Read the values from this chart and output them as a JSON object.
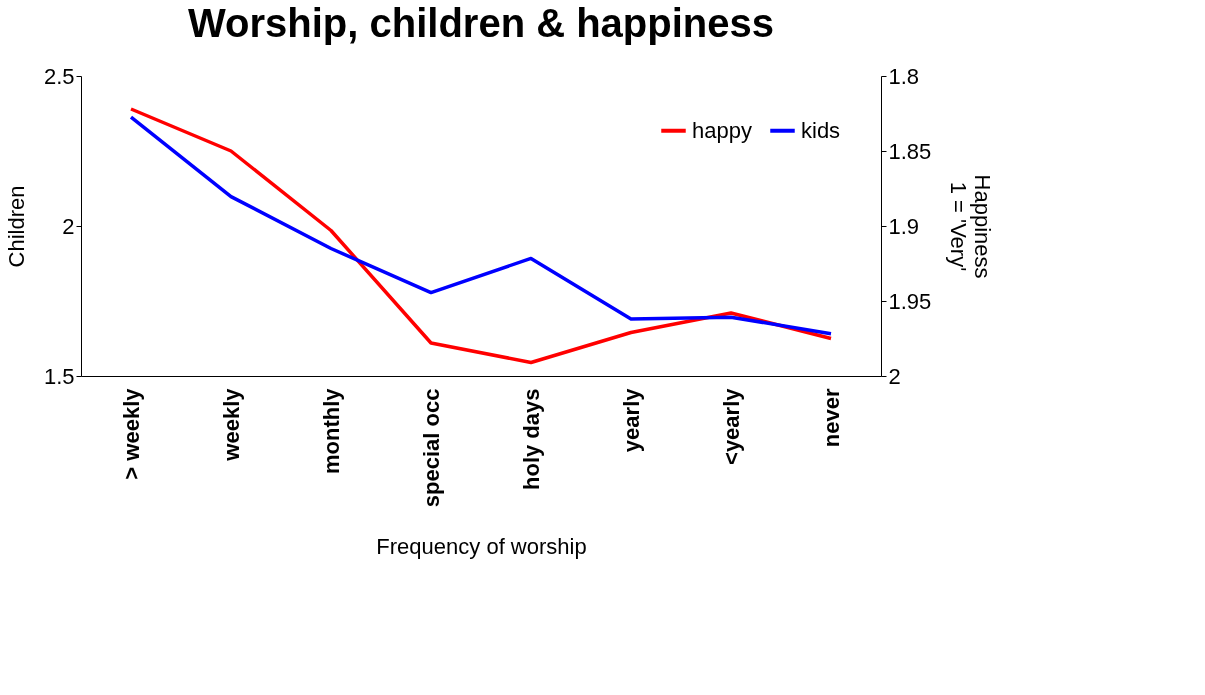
{
  "chart_data": {
    "type": "line",
    "title": "Worship, children & happiness",
    "xlabel": "Frequency of worship",
    "ylabel": "Children",
    "y2label": "Happiness\n1 = 'Very'",
    "categories": [
      "> weekly",
      "weekly",
      "monthly",
      "special occ",
      "holy days",
      "yearly",
      "<yearly",
      "never"
    ],
    "series": [
      {
        "name": "happy",
        "color": "#ff0000",
        "axis": "y2",
        "values": [
          1.822,
          1.85,
          1.903,
          1.978,
          1.991,
          1.971,
          1.958,
          1.975
        ]
      },
      {
        "name": "kids",
        "color": "#0000ff",
        "values": [
          2.363,
          2.098,
          1.925,
          1.778,
          1.892,
          1.69,
          1.696,
          1.641
        ]
      }
    ],
    "ylim": [
      1.5,
      2.5
    ],
    "yticks": [
      1.5,
      2,
      2.5
    ],
    "y2lim": [
      2,
      1.8
    ],
    "y2ticks": [
      1.8,
      1.85,
      1.9,
      1.95,
      2
    ],
    "grid": false,
    "legend": "top right",
    "marker": "none",
    "line_style": "solid"
  }
}
